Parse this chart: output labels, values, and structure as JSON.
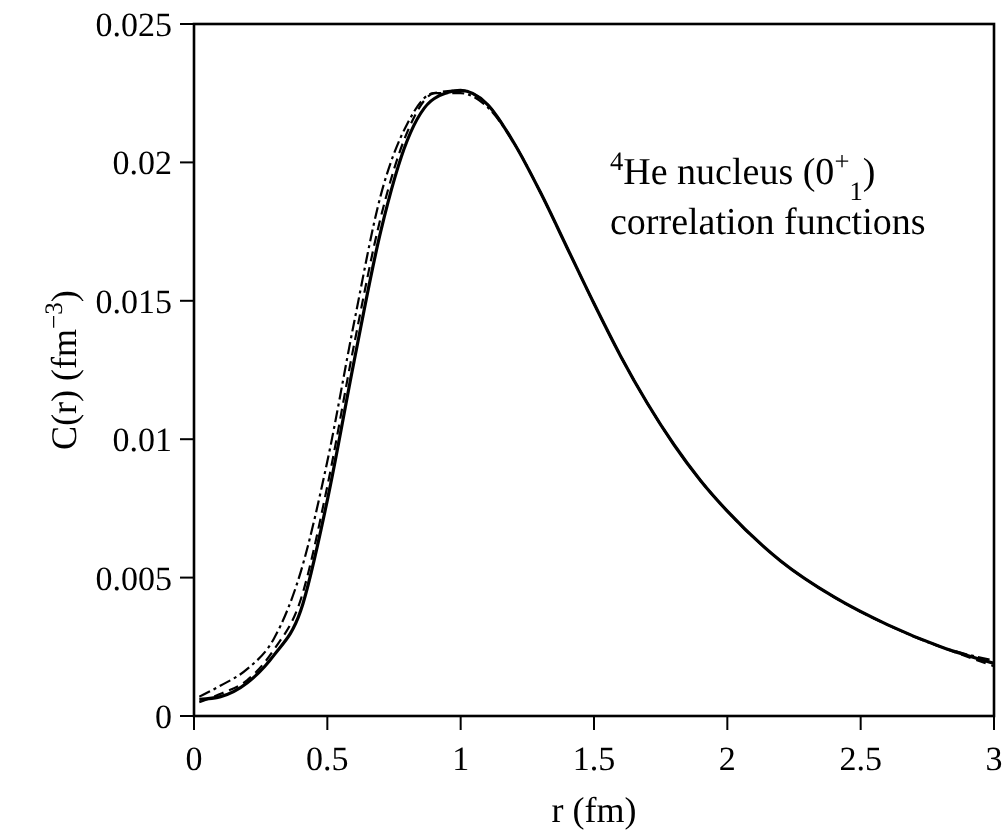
{
  "chart_data": {
    "type": "line",
    "xlabel": "r (fm)",
    "ylabel": "C(r) (fm$^{−3}$)",
    "annotations": [
      "$^{4}$He nucleus (0$^{+}$$_{1}$)",
      "correlation functions"
    ],
    "x": [
      0.02,
      0.1,
      0.2,
      0.3,
      0.4,
      0.5,
      0.6,
      0.7,
      0.8,
      0.9,
      1.0,
      1.1,
      1.2,
      1.3,
      1.4,
      1.5,
      1.6,
      1.7,
      1.8,
      1.9,
      2.0,
      2.2,
      2.4,
      2.6,
      2.8,
      3.0
    ],
    "series": [
      {
        "color": "#000000",
        "line_style": "solid",
        "values": [
          0.0006,
          0.0007,
          0.0012,
          0.0022,
          0.0038,
          0.0078,
          0.0128,
          0.0175,
          0.0208,
          0.0223,
          0.0226,
          0.0221,
          0.0207,
          0.0189,
          0.0169,
          0.0149,
          0.013,
          0.0113,
          0.0098,
          0.0085,
          0.0074,
          0.0056,
          0.0043,
          0.0033,
          0.0025,
          0.0019
        ]
      },
      {
        "color": "#000000",
        "line_style": "dashed",
        "values": [
          0.0005,
          0.0008,
          0.0013,
          0.0024,
          0.0042,
          0.0083,
          0.0134,
          0.018,
          0.0211,
          0.0225,
          0.0226,
          0.0221,
          0.0207,
          0.0189,
          0.0169,
          0.0149,
          0.013,
          0.0113,
          0.0098,
          0.0085,
          0.0074,
          0.0056,
          0.0043,
          0.0033,
          0.0025,
          0.0018
        ]
      },
      {
        "color": "#000000",
        "line_style": "dashdot",
        "values": [
          0.0007,
          0.0011,
          0.0017,
          0.0028,
          0.0052,
          0.0092,
          0.0142,
          0.0188,
          0.0214,
          0.0225,
          0.0225,
          0.022,
          0.0207,
          0.0189,
          0.0169,
          0.0149,
          0.013,
          0.0113,
          0.0098,
          0.0085,
          0.0074,
          0.0056,
          0.0043,
          0.0033,
          0.0025,
          0.002
        ]
      }
    ],
    "xlim": [
      0,
      3
    ],
    "xticks": [
      0,
      0.5,
      1,
      1.5,
      2,
      2.5,
      3
    ],
    "ylim": [
      0,
      0.025
    ],
    "yticks": [
      0,
      0.005,
      0.01,
      0.015,
      0.02,
      0.025
    ],
    "grid": false
  }
}
